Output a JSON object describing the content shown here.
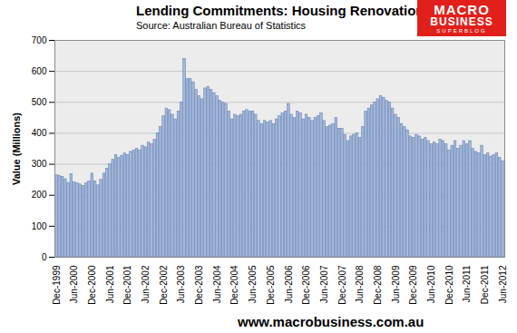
{
  "chart_data": {
    "type": "bar",
    "title": "Lending Commitments:  Housing Renovations",
    "subtitle": "Source: Australian Bureau of Statistics",
    "logo": [
      "MACRO",
      "BUSINESS",
      "SUPERBLOG"
    ],
    "caption": "www.macrobusiness.com.au",
    "y_label": "Value (Millions)",
    "color": "#a3b7da",
    "grid": true,
    "ylim": [
      0,
      700
    ],
    "yticks": [
      0,
      100,
      200,
      300,
      400,
      500,
      600,
      700
    ],
    "categories": [
      "Dec-1999",
      null,
      null,
      null,
      null,
      null,
      "Jun-2000",
      null,
      null,
      null,
      null,
      null,
      "Dec-2000",
      null,
      null,
      null,
      null,
      null,
      "Jun-2001",
      null,
      null,
      null,
      null,
      null,
      "Dec-2001",
      null,
      null,
      null,
      null,
      null,
      "Jun-2002",
      null,
      null,
      null,
      null,
      null,
      "Dec-2002",
      null,
      null,
      null,
      null,
      null,
      "Jun-2003",
      null,
      null,
      null,
      null,
      null,
      "Dec-2003",
      null,
      null,
      null,
      null,
      null,
      "Jun-2004",
      null,
      null,
      null,
      null,
      null,
      "Dec-2004",
      null,
      null,
      null,
      null,
      null,
      "Jun-2005",
      null,
      null,
      null,
      null,
      null,
      "Dec-2005",
      null,
      null,
      null,
      null,
      null,
      "Jun-2006",
      null,
      null,
      null,
      null,
      null,
      "Dec-2006",
      null,
      null,
      null,
      null,
      null,
      "Jun-2007",
      null,
      null,
      null,
      null,
      null,
      "Dec-2007",
      null,
      null,
      null,
      null,
      null,
      "Jun-2008",
      null,
      null,
      null,
      null,
      null,
      "Dec-2008",
      null,
      null,
      null,
      null,
      null,
      "Jun-2009",
      null,
      null,
      null,
      null,
      null,
      "Dec-2009",
      null,
      null,
      null,
      null,
      null,
      "Jun-2010",
      null,
      null,
      null,
      null,
      null,
      "Dec-2010",
      null,
      null,
      null,
      null,
      null,
      "Jun-2011",
      null,
      null,
      null,
      null,
      null,
      "Dec-2011",
      null,
      null,
      null,
      null,
      null,
      "Jun-2012"
    ],
    "values": [
      265,
      263,
      260,
      252,
      240,
      268,
      242,
      238,
      235,
      230,
      238,
      245,
      270,
      245,
      232,
      250,
      270,
      285,
      300,
      315,
      330,
      320,
      328,
      335,
      330,
      340,
      345,
      350,
      345,
      360,
      355,
      370,
      365,
      380,
      400,
      420,
      455,
      480,
      475,
      460,
      445,
      470,
      500,
      640,
      575,
      575,
      565,
      540,
      520,
      510,
      545,
      550,
      540,
      530,
      520,
      505,
      500,
      495,
      470,
      445,
      460,
      455,
      460,
      470,
      475,
      470,
      470,
      460,
      440,
      430,
      440,
      435,
      440,
      430,
      445,
      455,
      465,
      470,
      495,
      460,
      450,
      470,
      465,
      445,
      460,
      450,
      440,
      450,
      455,
      465,
      440,
      420,
      425,
      430,
      450,
      415,
      415,
      395,
      375,
      390,
      395,
      400,
      385,
      420,
      470,
      480,
      490,
      500,
      510,
      520,
      515,
      505,
      500,
      480,
      460,
      450,
      430,
      420,
      410,
      390,
      385,
      395,
      390,
      380,
      385,
      375,
      365,
      370,
      365,
      380,
      375,
      365,
      345,
      360,
      375,
      350,
      360,
      375,
      365,
      375,
      350,
      340,
      335,
      360,
      330,
      335,
      325,
      330,
      335,
      320,
      310
    ]
  }
}
